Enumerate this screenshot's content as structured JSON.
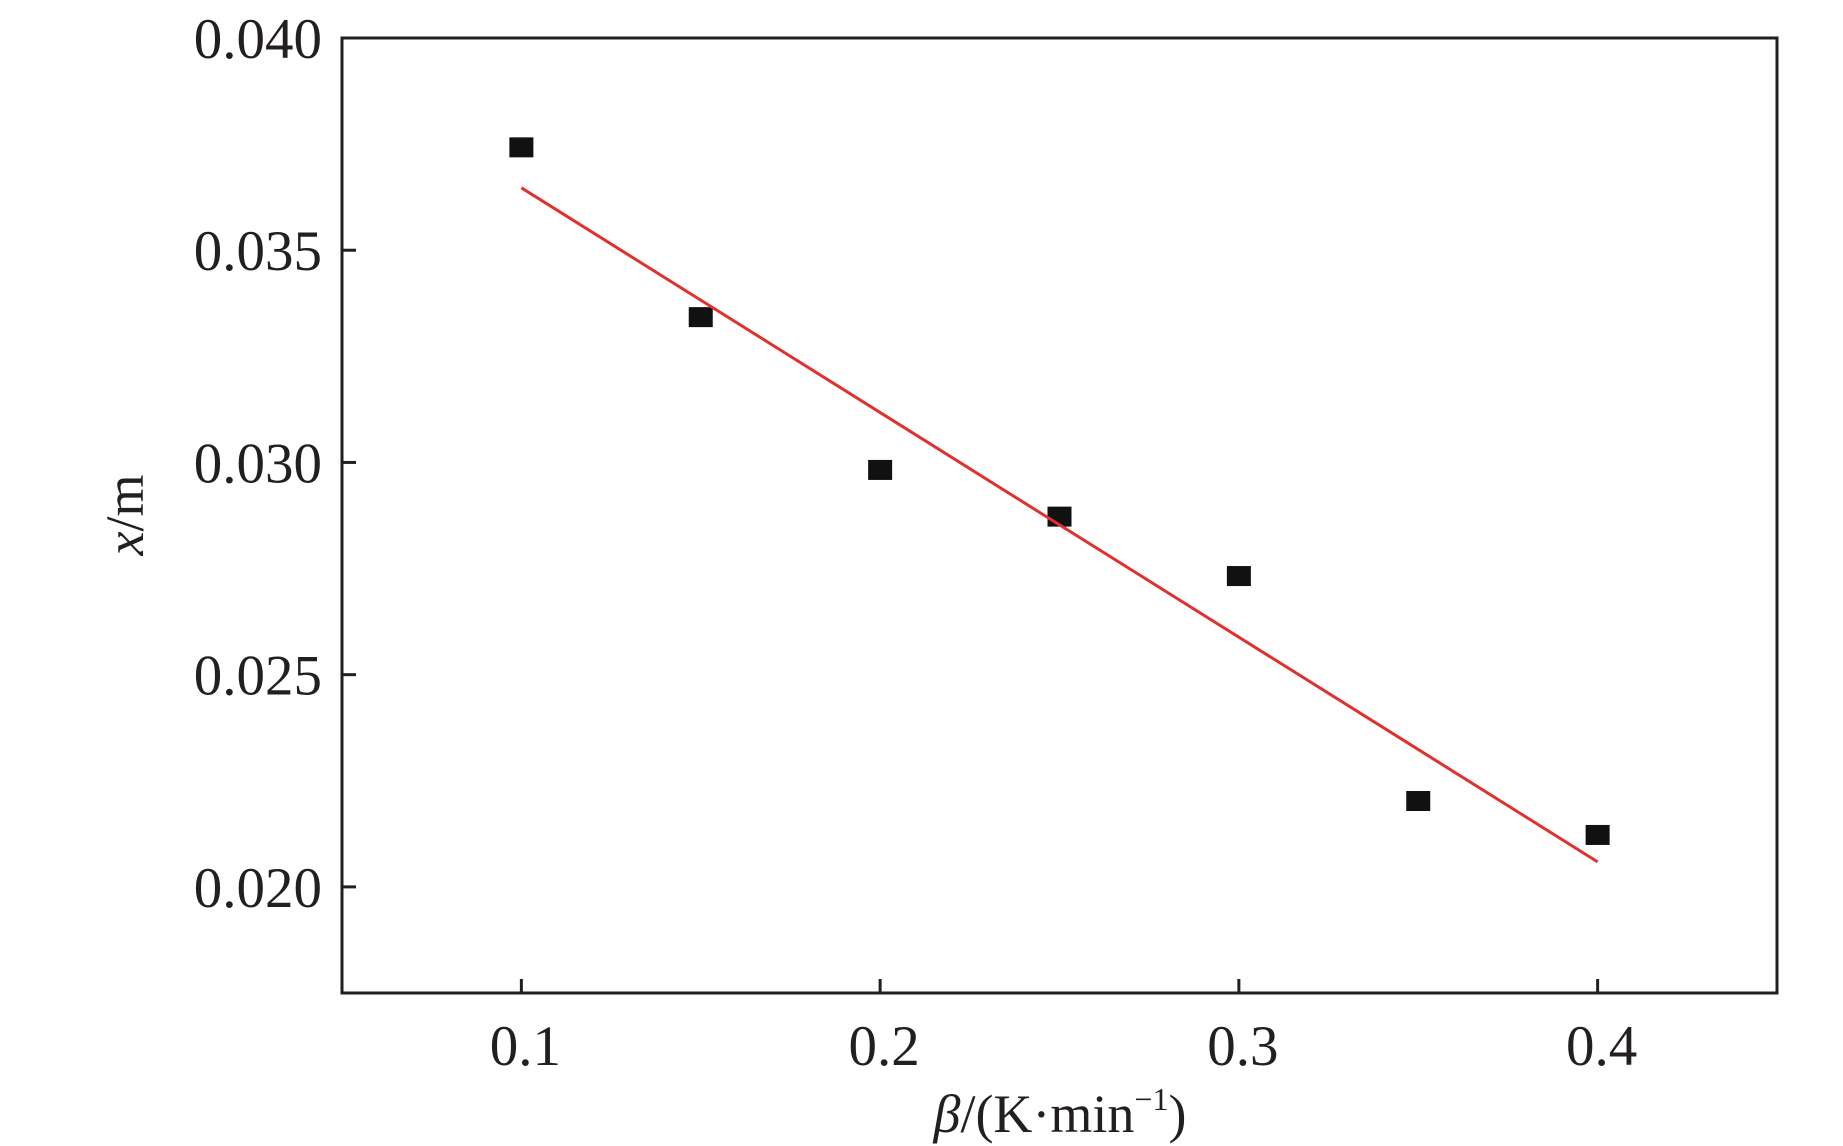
{
  "chart_data": {
    "type": "scatter",
    "xlabel": "β/(K·min⁻¹)",
    "xlabel_parts": {
      "symbol": "β",
      "unit_open": "/(K·min",
      "exponent": "−1",
      "unit_close": ")"
    },
    "ylabel": "x/m",
    "ylabel_parts": {
      "symbol": "x",
      "unit": "/m"
    },
    "xlim": [
      0.05,
      0.45
    ],
    "ylim": [
      0.0175,
      0.04
    ],
    "xticks": [
      0.1,
      0.2,
      0.3,
      0.4
    ],
    "xtick_labels": [
      "0.1",
      "0.2",
      "0.3",
      "0.4"
    ],
    "yticks": [
      0.02,
      0.025,
      0.03,
      0.035,
      0.04
    ],
    "ytick_labels": [
      "0.020",
      "0.025",
      "0.030",
      "0.035",
      "0.040"
    ],
    "grid": false,
    "series": [
      {
        "type": "scatter",
        "marker": "square",
        "color": "#111111",
        "x": [
          0.1,
          0.15,
          0.2,
          0.25,
          0.3,
          0.35,
          0.4
        ],
        "y": [
          0.0374,
          0.0334,
          0.0298,
          0.0287,
          0.0273,
          0.022,
          0.0212
        ]
      },
      {
        "type": "line",
        "color": "#e0312f",
        "x": [
          0.1,
          0.4
        ],
        "y": [
          0.03647,
          0.02059
        ]
      }
    ]
  }
}
